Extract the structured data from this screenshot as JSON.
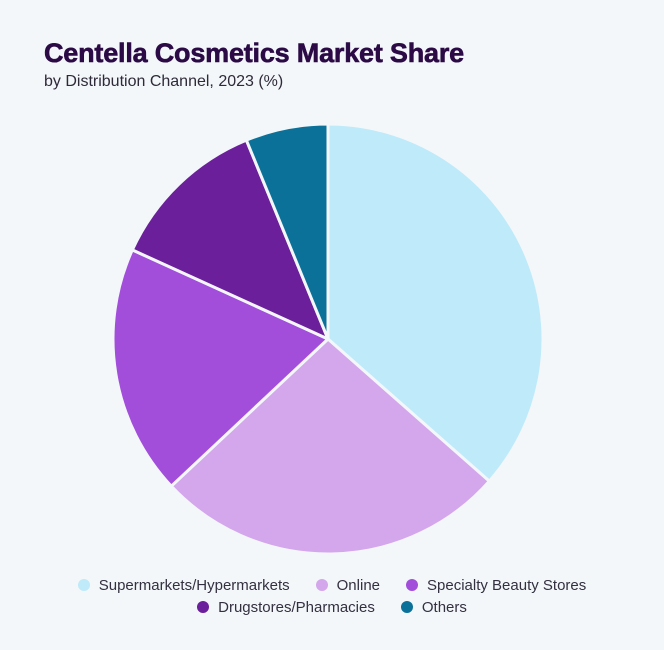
{
  "chart_data": {
    "type": "pie",
    "title": "Centella Cosmetics Market Share",
    "subtitle": "by Distribution Channel, 2023 (%)",
    "categories": [
      "Supermarkets/Hypermarkets",
      "Online",
      "Specialty Beauty Stores",
      "Drugstores/Pharmacies",
      "Others"
    ],
    "values": [
      36.5,
      26.5,
      18.8,
      12.0,
      6.2
    ],
    "colors": [
      "#BFEAFA",
      "#D4A6EC",
      "#A24EDB",
      "#6B1F9A",
      "#0C7199"
    ],
    "start_angle": "12 o'clock, clockwise",
    "legend_position": "bottom",
    "data_labels": false
  },
  "header": {
    "title": "Centella Cosmetics Market Share",
    "subtitle": "by Distribution Channel, 2023 (%)"
  },
  "legend": {
    "rows": [
      [
        {
          "label": "Supermarkets/Hypermarkets",
          "color": "#BFEAFA"
        },
        {
          "label": "Online",
          "color": "#D4A6EC"
        },
        {
          "label": "Specialty Beauty Stores",
          "color": "#A24EDB"
        }
      ],
      [
        {
          "label": "Drugstores/Pharmacies",
          "color": "#6B1F9A"
        },
        {
          "label": "Others",
          "color": "#0C7199"
        }
      ]
    ]
  },
  "colors": {
    "background": "#F3F7FA",
    "title": "#2B0A45",
    "text": "#333040"
  }
}
